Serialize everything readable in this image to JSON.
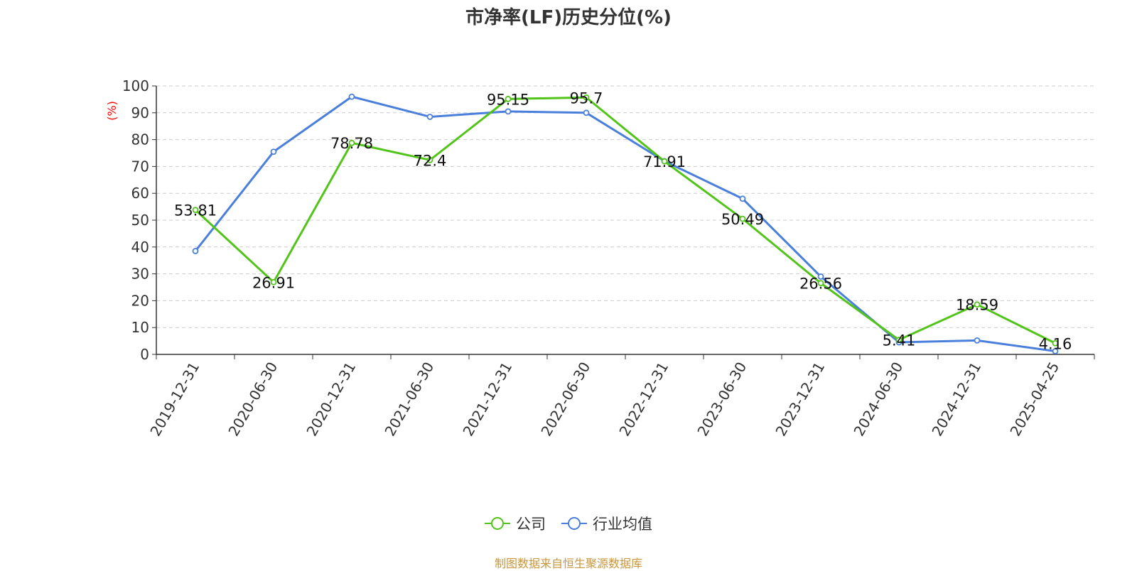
{
  "chart_data": {
    "type": "line",
    "title": "市净率(LF)历史分位(%)",
    "ylabel": "(%)",
    "ylim": [
      0,
      100
    ],
    "yticks": [
      "0",
      "10",
      "20",
      "30",
      "40",
      "50",
      "60",
      "70",
      "80",
      "90",
      "100"
    ],
    "categories": [
      "2019-12-31",
      "2020-06-30",
      "2020-12-31",
      "2021-06-30",
      "2021-12-31",
      "2022-06-30",
      "2022-12-31",
      "2023-06-30",
      "2023-12-31",
      "2024-06-30",
      "2024-12-31",
      "2025-04-25"
    ],
    "series": [
      {
        "name": "公司",
        "color": "#52c41a",
        "values": [
          53.81,
          26.91,
          78.78,
          72.4,
          95.15,
          95.7,
          71.91,
          50.49,
          26.56,
          5.41,
          18.59,
          4.16
        ],
        "labels": [
          "53.81",
          "26.91",
          "78.78",
          "72.4",
          "95.15",
          "95.7",
          "71.91",
          "50.49",
          "26.56",
          "5.41",
          "18.59",
          "4.16"
        ]
      },
      {
        "name": "行业均值",
        "color": "#4a7fdb",
        "values": [
          38.5,
          75.5,
          96.0,
          88.5,
          90.5,
          90.0,
          72.0,
          58.0,
          29.0,
          4.5,
          5.2,
          1.2
        ]
      }
    ],
    "grid": true,
    "legend_position": "bottom-center"
  },
  "source": {
    "text": "制图数据来自恒生聚源数据库",
    "color": "#c8963e"
  },
  "colors": {
    "axis": "#333333",
    "grid": "#cccccc",
    "ylabel": "#ff0000"
  }
}
